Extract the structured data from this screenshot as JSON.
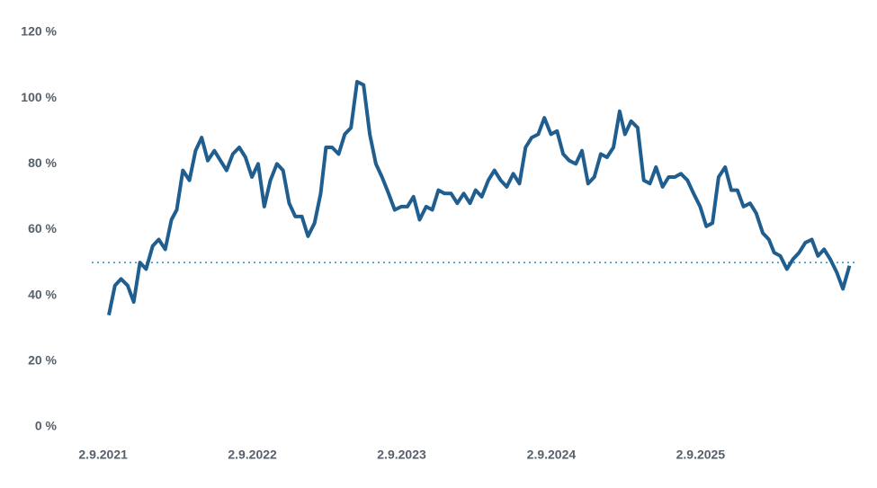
{
  "chart_data": {
    "type": "line",
    "x": [
      "2021-09-16",
      "2021-10-01",
      "2021-10-16",
      "2021-11-01",
      "2021-11-16",
      "2021-12-01",
      "2021-12-16",
      "2022-01-01",
      "2022-01-16",
      "2022-02-01",
      "2022-02-16",
      "2022-03-01",
      "2022-03-16",
      "2022-04-01",
      "2022-04-16",
      "2022-05-01",
      "2022-05-16",
      "2022-06-01",
      "2022-06-16",
      "2022-07-01",
      "2022-07-16",
      "2022-08-01",
      "2022-08-16",
      "2022-09-01",
      "2022-09-16",
      "2022-10-01",
      "2022-10-16",
      "2022-11-01",
      "2022-11-16",
      "2022-12-01",
      "2022-12-16",
      "2023-01-01",
      "2023-01-16",
      "2023-02-01",
      "2023-02-16",
      "2023-03-01",
      "2023-03-16",
      "2023-04-01",
      "2023-04-16",
      "2023-05-01",
      "2023-05-16",
      "2023-06-01",
      "2023-06-16",
      "2023-07-01",
      "2023-07-16",
      "2023-08-01",
      "2023-08-16",
      "2023-09-01",
      "2023-09-16",
      "2023-10-01",
      "2023-10-16",
      "2023-11-01",
      "2023-11-16",
      "2023-12-01",
      "2023-12-16",
      "2024-01-01",
      "2024-01-16",
      "2024-02-01",
      "2024-02-16",
      "2024-03-01",
      "2024-03-16",
      "2024-04-01",
      "2024-04-16",
      "2024-05-01",
      "2024-05-16",
      "2024-06-01",
      "2024-06-16",
      "2024-07-01",
      "2024-07-16",
      "2024-08-01",
      "2024-08-16",
      "2024-09-01",
      "2024-09-16",
      "2024-10-01",
      "2024-10-16",
      "2024-11-01",
      "2024-11-16",
      "2024-12-01",
      "2024-12-16",
      "2025-01-01",
      "2025-01-16",
      "2025-02-01",
      "2025-02-16",
      "2025-03-01",
      "2025-03-16",
      "2025-04-01",
      "2025-04-16",
      "2025-05-01",
      "2025-05-16",
      "2025-06-01",
      "2025-06-16",
      "2025-07-01",
      "2025-07-16",
      "2025-08-01",
      "2025-08-16",
      "2025-09-01",
      "2025-09-16",
      "2025-10-01",
      "2025-10-16",
      "2025-11-01",
      "2025-11-16",
      "2025-12-01",
      "2025-12-16",
      "2026-01-01",
      "2026-01-16",
      "2026-02-01",
      "2026-02-16",
      "2026-03-01",
      "2026-03-16",
      "2026-04-01",
      "2026-04-16",
      "2026-05-01",
      "2026-05-16",
      "2026-06-01",
      "2026-06-16",
      "2026-07-01",
      "2026-07-16",
      "2026-08-01",
      "2026-08-16",
      "2026-09-01"
    ],
    "series": [
      {
        "color": "#1f5e8f",
        "values": [
          34,
          43,
          45,
          43,
          38,
          50,
          48,
          55,
          57,
          54,
          63,
          66,
          78,
          75,
          84,
          88,
          81,
          84,
          81,
          78,
          83,
          85,
          82,
          76,
          80,
          67,
          75,
          80,
          78,
          68,
          64,
          64,
          58,
          62,
          71,
          85,
          85,
          83,
          89,
          91,
          105,
          104,
          89,
          80,
          76,
          71,
          66,
          67,
          67,
          70,
          63,
          67,
          66,
          72,
          71,
          71,
          68,
          71,
          68,
          72,
          70,
          75,
          78,
          75,
          73,
          77,
          74,
          85,
          88,
          89,
          94,
          89,
          90,
          83,
          81,
          80,
          84,
          74,
          76,
          83,
          82,
          85,
          96,
          89,
          93,
          91,
          75,
          74,
          79,
          73,
          76,
          76,
          77,
          75,
          71,
          67,
          61,
          62,
          76,
          79,
          72,
          72,
          67,
          68,
          65,
          59,
          57,
          53,
          52,
          48,
          51,
          53,
          56,
          57,
          52,
          54,
          51,
          47,
          42,
          49
        ]
      }
    ],
    "reference_line": {
      "value": 50,
      "color": "#2e8fba"
    },
    "xlim": [
      "2021-07-01",
      "2026-10-01"
    ],
    "xticks": [
      {
        "value": "2021-09-02",
        "label": "2.9.2021"
      },
      {
        "value": "2022-09-02",
        "label": "2.9.2022"
      },
      {
        "value": "2023-09-02",
        "label": "2.9.2023"
      },
      {
        "value": "2024-09-02",
        "label": "2.9.2024"
      },
      {
        "value": "2025-09-02",
        "label": "2.9.2025"
      }
    ],
    "ylim": [
      0,
      120
    ],
    "yticks": [
      {
        "value": 0,
        "label": "0 %"
      },
      {
        "value": 20,
        "label": "20 %"
      },
      {
        "value": 40,
        "label": "40 %"
      },
      {
        "value": 60,
        "label": "60 %"
      },
      {
        "value": 80,
        "label": "80 %"
      },
      {
        "value": 100,
        "label": "100 %"
      },
      {
        "value": 120,
        "label": "120 %"
      }
    ],
    "grid": false
  }
}
